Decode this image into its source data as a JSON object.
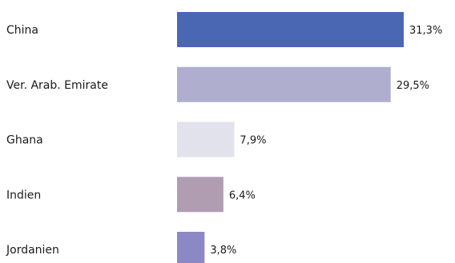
{
  "chart_data": {
    "type": "bar",
    "orientation": "horizontal",
    "categories": [
      "China",
      "Ver. Arab. Emirate",
      "Ghana",
      "Indien",
      "Jordanien"
    ],
    "values": [
      31.3,
      29.5,
      7.9,
      6.4,
      3.8
    ],
    "value_labels": [
      "31,3%",
      "29,5%",
      "7,9%",
      "6,4%",
      "3,8%"
    ],
    "colors": [
      "#4a67b4",
      "#b0aecf",
      "#e2e2ec",
      "#b09db2",
      "#8c88c6"
    ],
    "title": "",
    "xlabel": "",
    "ylabel": "",
    "xlim": [
      0,
      31.3
    ],
    "grid": false,
    "legend": "none"
  }
}
